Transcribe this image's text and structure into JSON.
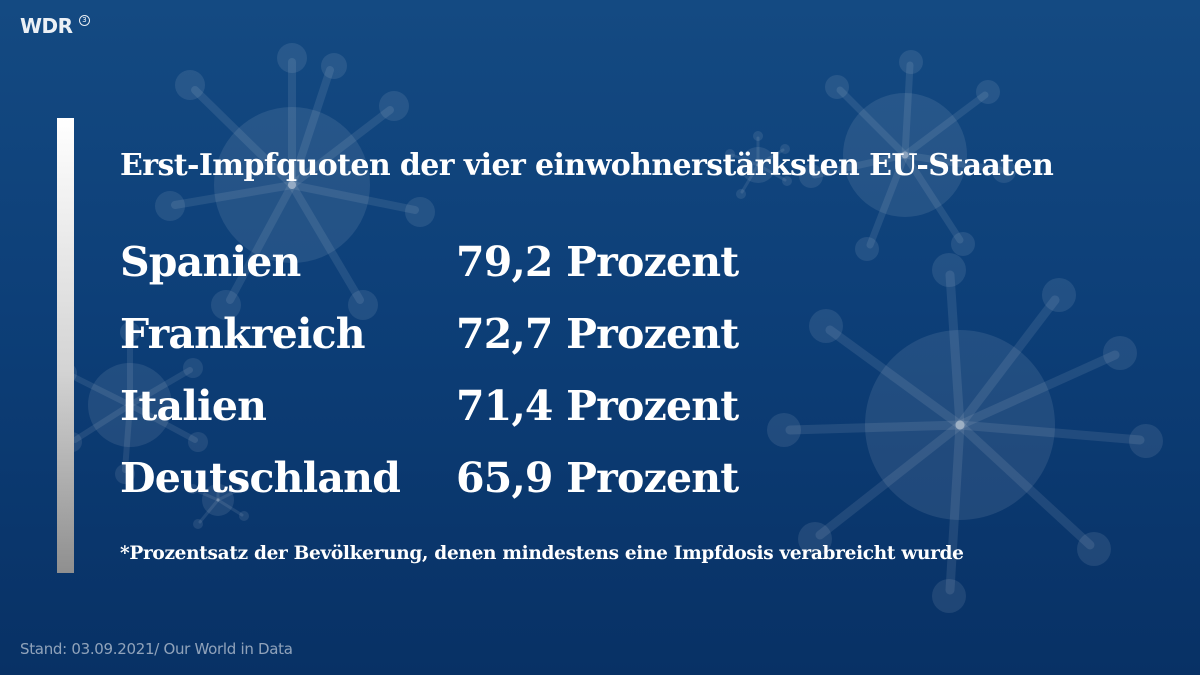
{
  "brand": {
    "logo_text": "WDR",
    "logo_mark": "3"
  },
  "title": "Erst-Impfquoten der vier einwohnerstärksten EU-Staaten",
  "rows": [
    {
      "country": "Spanien",
      "value": "79,2 Prozent"
    },
    {
      "country": "Frankreich",
      "value": "72,7 Prozent"
    },
    {
      "country": "Italien",
      "value": "71,4 Prozent"
    },
    {
      "country": "Deutschland",
      "value": "65,9 Prozent"
    }
  ],
  "footnote": "*Prozentsatz der Bevölkerung, denen mindestens eine Impfdosis verabreicht wurde",
  "source": "Stand: 03.09.2021/ Our World in Data",
  "colors": {
    "background": "#0d3f78",
    "text": "#ffffff",
    "virus": "#ffffff"
  },
  "icons": {
    "background": "coronavirus-icon"
  }
}
